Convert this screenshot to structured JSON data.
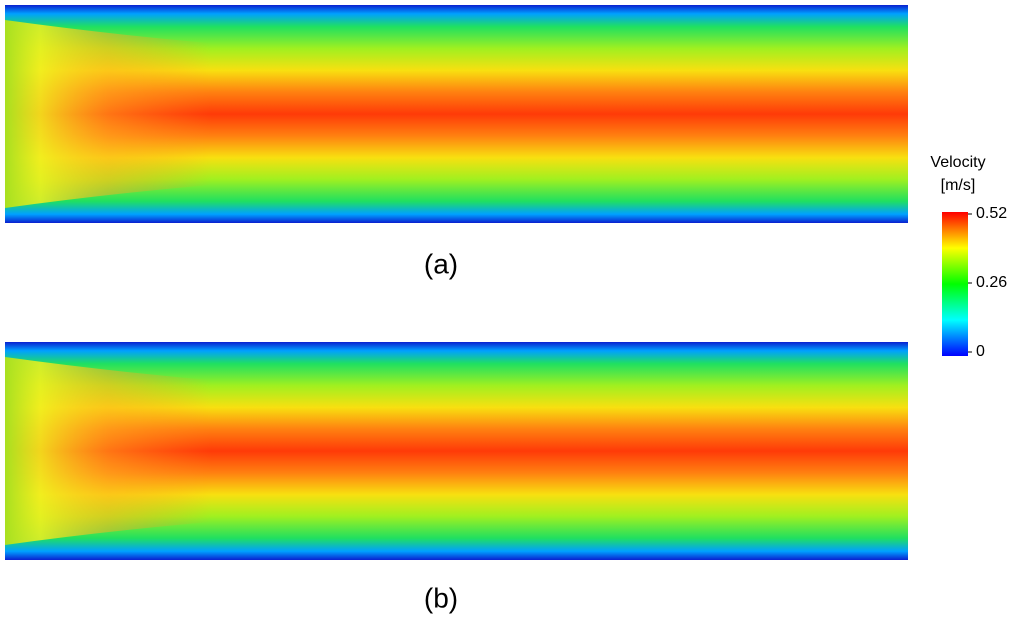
{
  "panels": [
    {
      "label": "(a)"
    },
    {
      "label": "(b)"
    }
  ],
  "colorbar": {
    "title": "Velocity",
    "unit": "[m/s]",
    "ticks": [
      0,
      0.26,
      0.52
    ]
  }
}
